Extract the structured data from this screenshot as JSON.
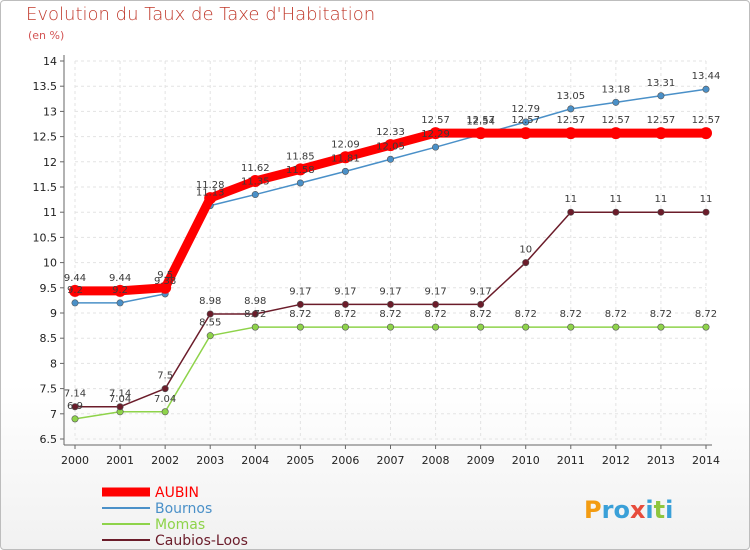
{
  "chart_data": {
    "type": "line",
    "title": "Evolution du Taux de Taxe d'Habitation",
    "ylabel": "(en %)",
    "ylim": [
      6.5,
      14
    ],
    "yticks": [
      "6.5",
      "7",
      "7.5",
      "8",
      "8.5",
      "9",
      "9.5",
      "10",
      "10.5",
      "11",
      "11.5",
      "12",
      "12.5",
      "13",
      "13.5",
      "14"
    ],
    "x": [
      "2000",
      "2001",
      "2002",
      "2003",
      "2004",
      "2005",
      "2006",
      "2007",
      "2008",
      "2009",
      "2010",
      "2011",
      "2012",
      "2013",
      "2014"
    ],
    "series": [
      {
        "name": "AUBIN",
        "color": "#ff0000",
        "values": [
          9.44,
          9.44,
          9.5,
          11.28,
          11.62,
          11.85,
          12.09,
          12.33,
          12.57,
          12.57,
          12.57,
          12.57,
          12.57,
          12.57,
          12.57
        ],
        "labels": [
          "9.44",
          "9.44",
          "9.5",
          "11.28",
          "11.62",
          "11.85",
          "12.09",
          "12.33",
          "12.57",
          "12.57",
          "12.57",
          "12.57",
          "12.57",
          "12.57",
          "12.57"
        ]
      },
      {
        "name": "Bournos",
        "color": "#4a90c8",
        "values": [
          9.2,
          9.2,
          9.38,
          11.13,
          11.35,
          11.58,
          11.81,
          12.05,
          12.29,
          12.54,
          12.79,
          13.05,
          13.18,
          13.31,
          13.44
        ],
        "labels": [
          "9.2",
          "9.2",
          "9.38",
          "11.13",
          "11.35",
          "11.58",
          "11.81",
          "12.05",
          "12.29",
          "12.54",
          "12.79",
          "13.05",
          "13.18",
          "13.31",
          "13.44"
        ]
      },
      {
        "name": "Momas",
        "color": "#8ed34a",
        "values": [
          6.9,
          7.04,
          7.04,
          8.55,
          8.72,
          8.72,
          8.72,
          8.72,
          8.72,
          8.72,
          8.72,
          8.72,
          8.72,
          8.72,
          8.72
        ],
        "labels": [
          "6.9",
          "7.04",
          "7.04",
          "8.55",
          "8.72",
          "8.72",
          "8.72",
          "8.72",
          "8.72",
          "8.72",
          "8.72",
          "8.72",
          "8.72",
          "8.72",
          "8.72"
        ]
      },
      {
        "name": "Caubios-Loos",
        "color": "#6b1c2a",
        "values": [
          7.14,
          7.14,
          7.5,
          8.98,
          8.98,
          9.17,
          9.17,
          9.17,
          9.17,
          9.17,
          10,
          11,
          11,
          11,
          11
        ],
        "labels": [
          "7.14",
          "7.14",
          "7.5",
          "8.98",
          "8.98",
          "9.17",
          "9.17",
          "9.17",
          "9.17",
          "9.17",
          "10",
          "11",
          "11",
          "11",
          "11"
        ]
      }
    ]
  },
  "logo": {
    "text": "Proxiti",
    "letters": [
      "P",
      "r",
      "o",
      "x",
      "i",
      "t",
      "i"
    ],
    "colors": [
      "#f39c12",
      "#3aa0d8",
      "#3aa0d8",
      "#e74c3c",
      "#3aa0d8",
      "#8ec63f",
      "#3aa0d8"
    ]
  }
}
